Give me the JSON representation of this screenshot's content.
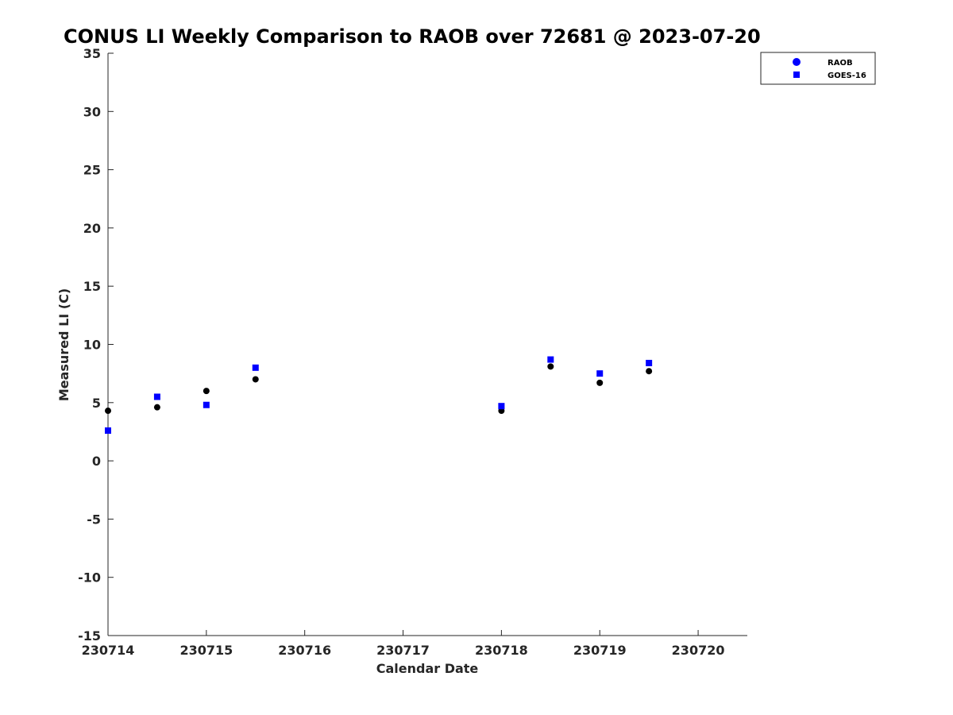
{
  "chart_data": {
    "type": "scatter",
    "title": "CONUS LI Weekly Comparison to RAOB over 72681 @ 2023-07-20",
    "xlabel": "Calendar Date",
    "ylabel": "Measured LI (C)",
    "xlim": [
      0,
      6.5
    ],
    "ylim": [
      -15,
      35
    ],
    "x_ticks": [
      0,
      1,
      2,
      3,
      4,
      5,
      6
    ],
    "x_tick_labels": [
      "230714",
      "230715",
      "230716",
      "230717",
      "230718",
      "230719",
      "230720"
    ],
    "y_ticks": [
      -15,
      -10,
      -5,
      0,
      5,
      10,
      15,
      20,
      25,
      30,
      35
    ],
    "y_tick_labels": [
      "-15",
      "-10",
      "-5",
      "0",
      "5",
      "10",
      "15",
      "20",
      "25",
      "30",
      "35"
    ],
    "legend_position": "top-right",
    "series": [
      {
        "name": "RAOB",
        "marker": "circle",
        "color": "#000000",
        "legend_color": "#0000ff",
        "x": [
          0,
          0.5,
          1,
          1.5,
          4,
          4.5,
          5,
          5.5
        ],
        "y": [
          4.3,
          4.6,
          6.0,
          7.0,
          4.3,
          8.1,
          6.7,
          7.7
        ]
      },
      {
        "name": "GOES-16",
        "marker": "square",
        "color": "#0000ff",
        "legend_color": "#0000ff",
        "x": [
          0,
          0.5,
          1,
          1.5,
          4,
          4.5,
          5,
          5.5
        ],
        "y": [
          2.6,
          5.5,
          4.8,
          8.0,
          4.7,
          8.7,
          7.5,
          8.4
        ]
      }
    ]
  }
}
